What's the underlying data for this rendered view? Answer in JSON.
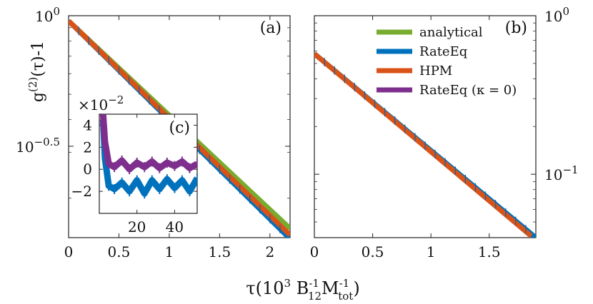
{
  "chart_data": [
    {
      "panel": "a",
      "type": "line",
      "panel_label": "(a)",
      "xlabel": "τ(10³ B₁₂⁻¹M_tot⁻¹)",
      "ylabel": "g⁽²⁾(τ)-1",
      "xlim": [
        0,
        2.2
      ],
      "ylim_log10": [
        -0.85,
        0
      ],
      "yscale": "log",
      "xticks": [
        "0",
        "0.5",
        "1",
        "1.5",
        "2"
      ],
      "xtick_values": [
        0,
        0.5,
        1,
        1.5,
        2
      ],
      "yticks": [
        "10^0",
        "10^-0.5"
      ],
      "ytick_values_log10": [
        0,
        -0.5
      ],
      "series": [
        {
          "name": "analytical",
          "color": "#77ac30",
          "x": [
            0,
            2.2
          ],
          "log10_y": [
            -0.02,
            -0.815
          ]
        },
        {
          "name": "RateEq",
          "color": "#0072bd",
          "x": [
            0,
            2.2
          ],
          "log10_y": [
            -0.02,
            -0.855
          ]
        },
        {
          "name": "HPM",
          "color": "#d95319",
          "x": [
            0,
            2.2
          ],
          "log10_y": [
            -0.02,
            -0.84
          ]
        }
      ]
    },
    {
      "panel": "b",
      "type": "line",
      "panel_label": "(b)",
      "xlim": [
        0,
        1.9
      ],
      "ylim_log10": [
        -1.4,
        0
      ],
      "yscale": "log",
      "xticks": [
        "0",
        "0.5",
        "1",
        "1.5"
      ],
      "xtick_values": [
        0,
        0.5,
        1,
        1.5
      ],
      "yticks": [
        "10^0",
        "10^-1"
      ],
      "ytick_values_log10": [
        0,
        -1
      ],
      "series": [
        {
          "name": "analytical",
          "color": "#77ac30",
          "x": [
            0,
            1.85
          ],
          "log10_y": [
            -0.24,
            -1.37
          ]
        },
        {
          "name": "RateEq",
          "color": "#0072bd",
          "x": [
            0,
            1.9
          ],
          "log10_y": [
            -0.24,
            -1.4
          ]
        },
        {
          "name": "HPM",
          "color": "#d95319",
          "x": [
            0,
            1.86
          ],
          "log10_y": [
            -0.24,
            -1.39
          ]
        }
      ]
    },
    {
      "panel": "c",
      "type": "line",
      "panel_label": "(c)",
      "inset_of": "a",
      "xlim": [
        0,
        52
      ],
      "ylim": [
        -4,
        5
      ],
      "yscale_label": "×10^-2",
      "xticks": [
        "20",
        "40"
      ],
      "xtick_values": [
        20,
        40
      ],
      "yticks": [
        "4",
        "2",
        "0",
        "−2"
      ],
      "ytick_values": [
        4,
        2,
        0,
        -2
      ],
      "series": [
        {
          "name": "RateEq",
          "color": "#0072bd",
          "x": [
            2,
            3,
            5,
            8,
            12,
            16,
            20,
            24,
            28,
            32,
            36,
            40,
            44,
            48,
            52
          ],
          "y": [
            4.5,
            1.0,
            -1.5,
            -1.8,
            -1.2,
            -2.0,
            -1.0,
            -2.2,
            -1.0,
            -1.8,
            -0.9,
            -1.7,
            -1.0,
            -2.0,
            -0.8
          ]
        },
        {
          "name": "RateEq (κ = 0)",
          "color": "#7e2f8e",
          "x": [
            2,
            3,
            5,
            8,
            12,
            16,
            20,
            24,
            28,
            32,
            36,
            40,
            44,
            48,
            52
          ],
          "y": [
            5.0,
            2.5,
            0.5,
            0.2,
            0.8,
            0.0,
            0.6,
            0.2,
            0.7,
            0.1,
            0.6,
            0.3,
            0.7,
            0.1,
            0.5
          ]
        }
      ]
    }
  ],
  "legend": {
    "entries": [
      {
        "label": "analytical",
        "color": "#77ac30"
      },
      {
        "label": "RateEq",
        "color": "#0072bd"
      },
      {
        "label": "HPM",
        "color": "#d95319"
      },
      {
        "label": "RateEq (κ = 0)",
        "color": "#7e2f8e"
      }
    ],
    "placement": "top-right of panel (b)"
  }
}
